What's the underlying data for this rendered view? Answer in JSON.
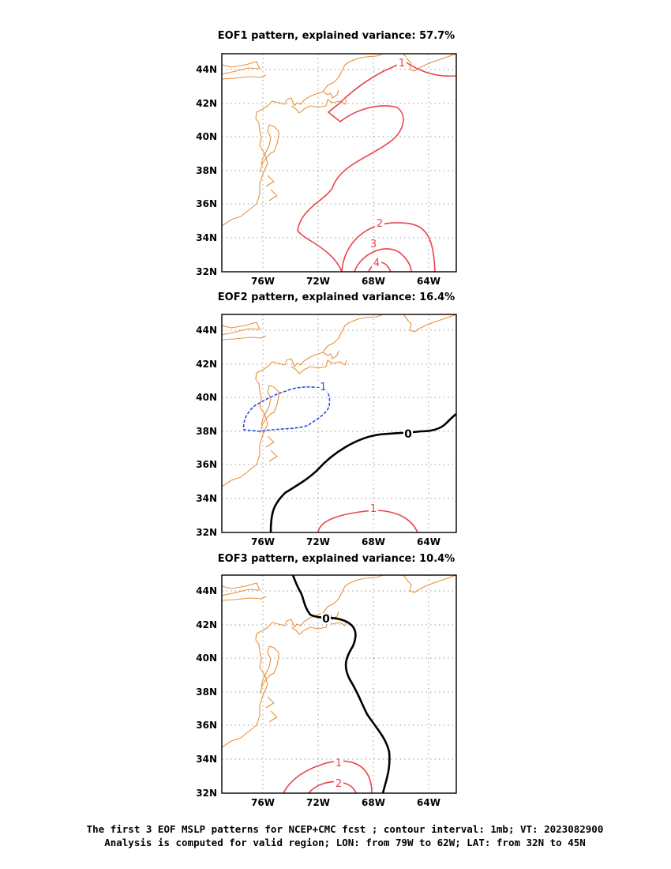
{
  "panels": [
    {
      "title": "EOF1 pattern, explained variance: 57.7%",
      "x_ticks": [
        "76W",
        "72W",
        "68W",
        "64W"
      ],
      "y_ticks": [
        "44N",
        "42N",
        "40N",
        "38N",
        "36N",
        "34N",
        "32N"
      ],
      "contour_labels": [
        "1",
        "2",
        "3",
        "4"
      ]
    },
    {
      "title": "EOF2 pattern, explained variance: 16.4%",
      "x_ticks": [
        "76W",
        "72W",
        "68W",
        "64W"
      ],
      "y_ticks": [
        "44N",
        "42N",
        "40N",
        "38N",
        "36N",
        "34N",
        "32N"
      ],
      "contour_labels": [
        "-1",
        "0",
        "1"
      ]
    },
    {
      "title": "EOF3 pattern, explained variance: 10.4%",
      "x_ticks": [
        "76W",
        "72W",
        "68W",
        "64W"
      ],
      "y_ticks": [
        "44N",
        "42N",
        "40N",
        "38N",
        "36N",
        "34N",
        "32N"
      ],
      "contour_labels": [
        "0",
        "1",
        "2"
      ]
    }
  ],
  "caption": {
    "line1": "The first 3 EOF MSLP patterns for NCEP+CMC fcst ; contour interval: 1mb; VT: 2023082900",
    "line2": "Analysis is computed for valid region; LON: from 79W to 62W; LAT: from 32N to 45N"
  },
  "colors": {
    "positive_contour": "#e8444a",
    "negative_contour": "#2a4ee0",
    "zero_contour": "#000000",
    "coastline": "#e8913a",
    "grid": "#9a9a9a"
  },
  "map_extent": {
    "lon_min": -79,
    "lon_max": -62,
    "lat_min": 32,
    "lat_max": 45
  }
}
